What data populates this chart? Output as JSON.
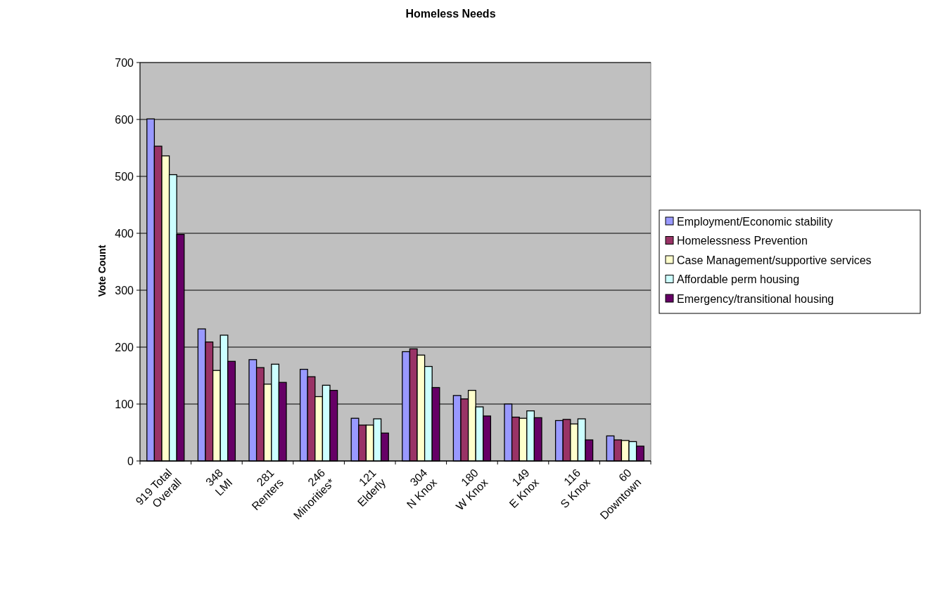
{
  "chart_data": {
    "type": "bar",
    "title": "Homeless Needs",
    "ylabel": "Vote Count",
    "categories": [
      "919 Total\nOverall",
      "348\nLMI",
      "281\nRenters",
      "246\nMinorities*",
      "121\nElderly",
      "304\nN Knox",
      "180\nW Knox",
      "149\nE Knox",
      "116\nS Knox",
      "60\nDowntown"
    ],
    "series": [
      {
        "name": "Employment/Economic stability",
        "color": "#9999ff",
        "values": [
          601,
          232,
          178,
          161,
          75,
          192,
          115,
          100,
          71,
          44
        ]
      },
      {
        "name": "Homelessness Prevention",
        "color": "#993366",
        "values": [
          553,
          209,
          164,
          148,
          63,
          197,
          109,
          77,
          73,
          37
        ]
      },
      {
        "name": "Case Management/supportive services",
        "color": "#ffffcc",
        "values": [
          536,
          159,
          135,
          113,
          63,
          186,
          124,
          75,
          65,
          36
        ]
      },
      {
        "name": "Affordable perm housing",
        "color": "#ccffff",
        "values": [
          503,
          221,
          170,
          133,
          74,
          166,
          95,
          88,
          74,
          34
        ]
      },
      {
        "name": "Emergency/transitional housing",
        "color": "#660066",
        "values": [
          398,
          175,
          138,
          124,
          49,
          129,
          79,
          76,
          37,
          26
        ]
      }
    ],
    "ylim": [
      0,
      700
    ],
    "yticks": [
      0,
      100,
      200,
      300,
      400,
      500,
      600,
      700
    ],
    "grid": "y",
    "legend": "right"
  }
}
